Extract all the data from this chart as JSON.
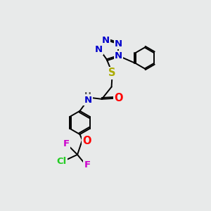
{
  "bg_color": "#e8eaea",
  "atom_colors": {
    "N": "#0000cc",
    "O": "#ff0000",
    "S": "#aaaa00",
    "Cl": "#22cc22",
    "F": "#cc00cc",
    "C": "#000000",
    "H": "#505050"
  },
  "bond_color": "#000000",
  "bond_width": 1.4,
  "font_size": 9.5,
  "figsize": [
    3.0,
    3.0
  ],
  "dpi": 100
}
